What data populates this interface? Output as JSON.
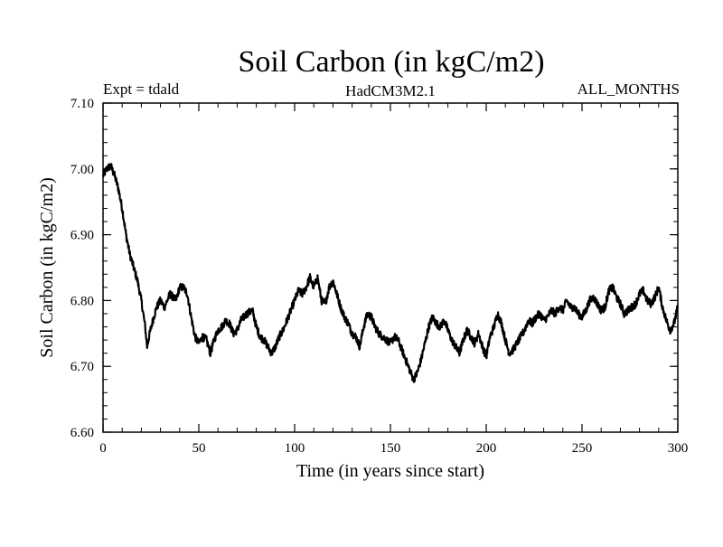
{
  "chart_data": {
    "type": "line",
    "title": "Soil Carbon (in kgC/m2)",
    "subtitle_left": "Expt = tdald",
    "subtitle_center": "HadCM3M2.1",
    "subtitle_right": "ALL_MONTHS",
    "xlabel": "Time (in years since start)",
    "ylabel": "Soil Carbon (in kgC/m2)",
    "xlim": [
      0,
      300
    ],
    "ylim": [
      6.6,
      7.1
    ],
    "xticks": [
      0,
      50,
      100,
      150,
      200,
      250,
      300
    ],
    "xtick_labels": [
      "0",
      "50",
      "100",
      "150",
      "200",
      "250",
      "300"
    ],
    "yticks": [
      6.6,
      6.7,
      6.8,
      6.9,
      7.0,
      7.1
    ],
    "ytick_labels": [
      "6.60",
      "6.70",
      "6.80",
      "6.90",
      "7.00",
      "7.10"
    ],
    "grid": false,
    "series": [
      {
        "name": "Soil Carbon",
        "color": "#000000",
        "x": [
          0,
          2,
          4,
          6,
          8,
          10,
          12,
          14,
          16,
          18,
          20,
          22,
          23,
          24,
          26,
          28,
          30,
          32,
          35,
          38,
          40,
          42,
          44,
          46,
          48,
          50,
          52,
          54,
          56,
          58,
          60,
          62,
          64,
          66,
          68,
          70,
          72,
          75,
          78,
          80,
          82,
          84,
          86,
          88,
          90,
          92,
          94,
          96,
          98,
          100,
          102,
          104,
          106,
          108,
          110,
          112,
          114,
          116,
          118,
          120,
          122,
          124,
          126,
          128,
          130,
          132,
          134,
          136,
          138,
          140,
          142,
          144,
          146,
          148,
          150,
          152,
          154,
          156,
          158,
          160,
          162,
          164,
          166,
          168,
          170,
          172,
          174,
          176,
          178,
          180,
          182,
          184,
          186,
          188,
          190,
          192,
          194,
          196,
          198,
          200,
          202,
          204,
          206,
          208,
          210,
          212,
          214,
          216,
          218,
          220,
          222,
          224,
          226,
          228,
          230,
          232,
          234,
          236,
          238,
          240,
          242,
          244,
          246,
          248,
          250,
          252,
          254,
          256,
          258,
          260,
          262,
          264,
          266,
          268,
          270,
          272,
          274,
          276,
          278,
          280,
          282,
          284,
          286,
          288,
          290,
          292,
          294,
          296,
          298,
          300
        ],
        "y": [
          6.99,
          7.0,
          7.005,
          6.99,
          6.97,
          6.94,
          6.9,
          6.87,
          6.85,
          6.83,
          6.8,
          6.76,
          6.73,
          6.745,
          6.77,
          6.79,
          6.8,
          6.79,
          6.81,
          6.8,
          6.82,
          6.82,
          6.81,
          6.775,
          6.745,
          6.735,
          6.745,
          6.74,
          6.72,
          6.74,
          6.755,
          6.76,
          6.77,
          6.765,
          6.75,
          6.755,
          6.77,
          6.78,
          6.785,
          6.76,
          6.745,
          6.74,
          6.73,
          6.72,
          6.73,
          6.745,
          6.755,
          6.77,
          6.785,
          6.8,
          6.815,
          6.81,
          6.82,
          6.835,
          6.82,
          6.835,
          6.8,
          6.795,
          6.82,
          6.83,
          6.81,
          6.79,
          6.775,
          6.765,
          6.75,
          6.745,
          6.73,
          6.76,
          6.78,
          6.775,
          6.76,
          6.75,
          6.745,
          6.74,
          6.735,
          6.745,
          6.74,
          6.725,
          6.71,
          6.695,
          6.68,
          6.69,
          6.71,
          6.735,
          6.76,
          6.775,
          6.765,
          6.76,
          6.77,
          6.755,
          6.74,
          6.73,
          6.72,
          6.74,
          6.755,
          6.745,
          6.735,
          6.75,
          6.73,
          6.715,
          6.745,
          6.76,
          6.78,
          6.765,
          6.74,
          6.72,
          6.725,
          6.735,
          6.745,
          6.755,
          6.77,
          6.765,
          6.775,
          6.78,
          6.77,
          6.775,
          6.785,
          6.78,
          6.79,
          6.785,
          6.8,
          6.79,
          6.79,
          6.78,
          6.775,
          6.785,
          6.8,
          6.805,
          6.795,
          6.785,
          6.79,
          6.815,
          6.82,
          6.805,
          6.795,
          6.78,
          6.785,
          6.79,
          6.795,
          6.81,
          6.815,
          6.8,
          6.795,
          6.805,
          6.82,
          6.79,
          6.77,
          6.755,
          6.765,
          6.79
        ]
      }
    ]
  }
}
